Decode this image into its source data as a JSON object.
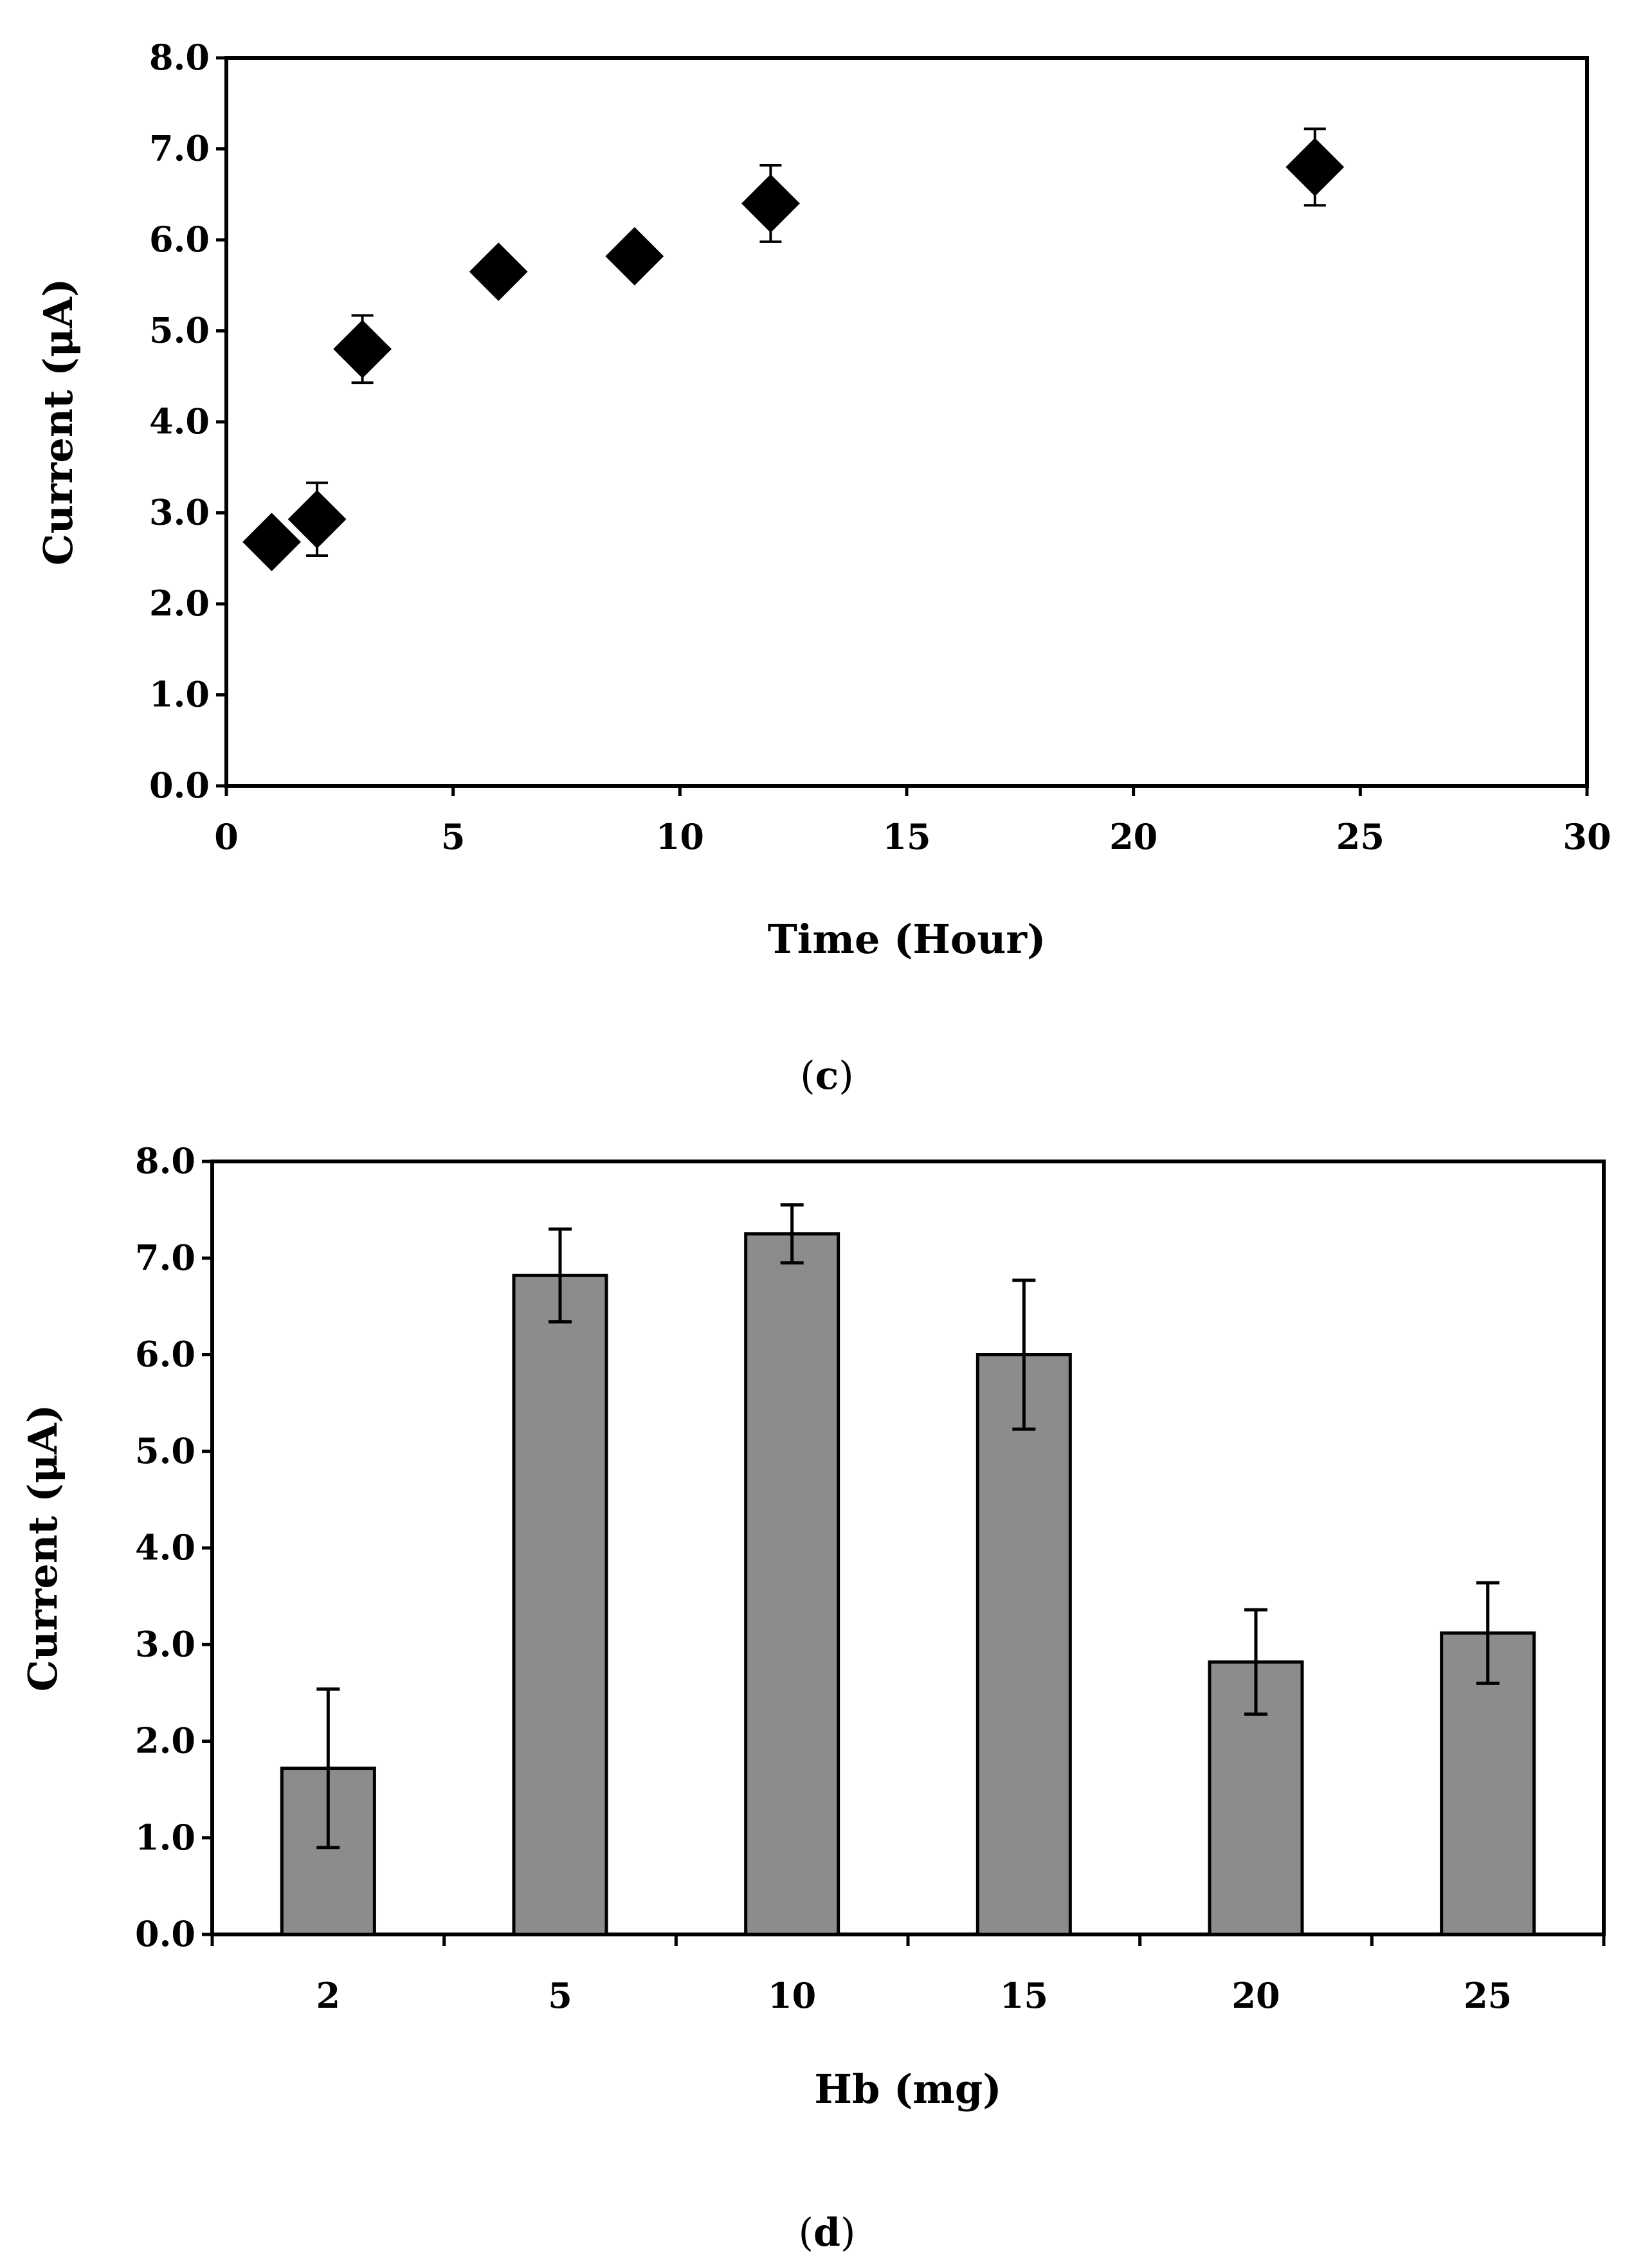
{
  "chart_data": [
    {
      "id": "c",
      "type": "scatter",
      "panel_label_open": "(",
      "panel_label_letter": "c",
      "panel_label_close": ")",
      "xlabel": "Time (Hour)",
      "ylabel": "Current (μA)",
      "xlim": [
        0,
        30
      ],
      "ylim": [
        0,
        8
      ],
      "xticks": [
        "0",
        "5",
        "10",
        "15",
        "20",
        "25",
        "30"
      ],
      "yticks": [
        "0.0",
        "1.0",
        "2.0",
        "3.0",
        "4.0",
        "5.0",
        "6.0",
        "7.0",
        "8.0"
      ],
      "grid": false,
      "marker": "diamond",
      "color": "#000000",
      "series": [
        {
          "name": "Current",
          "x": [
            1,
            2,
            3,
            6,
            9,
            12,
            24
          ],
          "y": [
            2.68,
            2.93,
            4.8,
            5.65,
            5.82,
            6.4,
            6.8
          ],
          "error": [
            0.15,
            0.4,
            0.37,
            0.12,
            0.12,
            0.42,
            0.42
          ]
        }
      ]
    },
    {
      "id": "d",
      "type": "bar",
      "panel_label_open": "(",
      "panel_label_letter": "d",
      "panel_label_close": ")",
      "xlabel": "Hb (mg)",
      "ylabel": "Current (μA)",
      "categories": [
        "2",
        "5",
        "10",
        "15",
        "20",
        "25"
      ],
      "ylim": [
        0,
        8
      ],
      "yticks": [
        "0.0",
        "1.0",
        "2.0",
        "3.0",
        "4.0",
        "5.0",
        "6.0",
        "7.0",
        "8.0"
      ],
      "grid": false,
      "bar_color": "#8c8c8c",
      "series": [
        {
          "name": "Current",
          "values": [
            1.72,
            6.82,
            7.25,
            6.0,
            2.82,
            3.12
          ],
          "error": [
            0.82,
            0.48,
            0.3,
            0.77,
            0.54,
            0.52
          ]
        }
      ]
    }
  ]
}
